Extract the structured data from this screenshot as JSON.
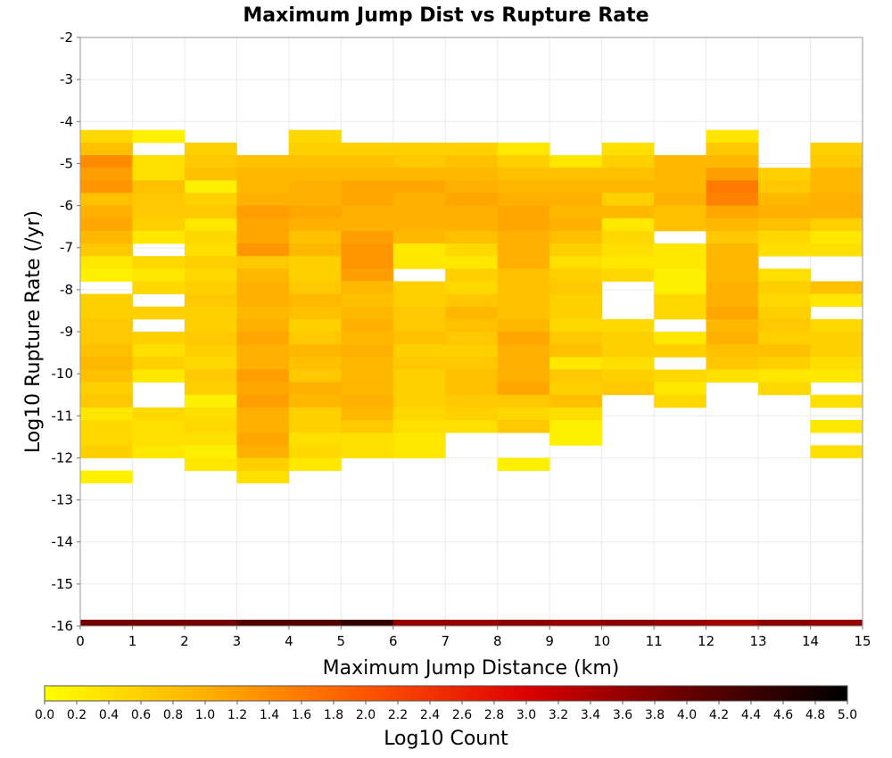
{
  "chart_data": {
    "type": "heatmap",
    "title": "Maximum Jump Dist vs Rupture Rate",
    "xlabel": "Maximum Jump Distance (km)",
    "ylabel": "Log10 Rupture Rate (/yr)",
    "colorbar_label": "Log10 Count",
    "xlim": [
      0,
      15
    ],
    "ylim": [
      -16,
      -2
    ],
    "x_ticks": [
      "0",
      "1",
      "2",
      "3",
      "4",
      "5",
      "6",
      "7",
      "8",
      "9",
      "10",
      "11",
      "12",
      "13",
      "14",
      "15"
    ],
    "y_ticks": [
      "-2",
      "-3",
      "-4",
      "-5",
      "-6",
      "-7",
      "-8",
      "-9",
      "-10",
      "-11",
      "-12",
      "-13",
      "-14",
      "-15",
      "-16"
    ],
    "colorbar_ticks": [
      "0.0",
      "0.2",
      "0.4",
      "0.6",
      "0.8",
      "1.0",
      "1.2",
      "1.4",
      "1.6",
      "1.8",
      "2.0",
      "2.2",
      "2.4",
      "2.6",
      "2.8",
      "3.0",
      "3.2",
      "3.4",
      "3.6",
      "3.8",
      "4.0",
      "4.2",
      "4.4",
      "4.6",
      "4.8",
      "5.0"
    ],
    "colorbar_range": [
      0,
      5
    ],
    "colormap": [
      "#ffff00",
      "#ffb000",
      "#ff5500",
      "#dd0000",
      "#660000",
      "#000000"
    ],
    "grid": true,
    "bin_width_x": 1,
    "bin_height_y": 0.3,
    "bins": [
      {
        "x": 0,
        "y0": -4.2,
        "values": [
          0.5,
          0.8,
          1.4,
          1.2,
          1.3,
          0.8,
          1.0,
          1.1,
          0.9,
          0.7,
          0.3,
          0.2,
          null,
          0.6,
          0.6,
          0.7,
          0.7,
          0.8,
          0.9,
          0.8,
          0.6,
          0.7,
          0.3,
          0.5,
          0.5,
          0.6,
          null,
          0.2
        ]
      },
      {
        "x": 1,
        "y0": -4.2,
        "values": [
          0.2,
          null,
          0.4,
          0.4,
          0.8,
          0.7,
          0.7,
          0.6,
          0.3,
          null,
          0.5,
          0.3,
          0.5,
          null,
          0.6,
          null,
          0.6,
          0.4,
          0.6,
          0.3,
          null,
          null,
          0.5,
          0.4,
          0.4,
          0.3
        ]
      },
      {
        "x": 2,
        "y0": -4.5,
        "values": [
          0.6,
          0.7,
          0.8,
          0.2,
          0.6,
          0.7,
          0.3,
          0.5,
          0.4,
          0.6,
          0.5,
          0.6,
          0.7,
          0.6,
          0.6,
          0.7,
          0.6,
          0.5,
          0.7,
          0.6,
          0.2,
          0.4,
          0.5,
          0.4,
          0.2,
          0.3
        ]
      },
      {
        "x": 3,
        "y0": -4.8,
        "values": [
          0.8,
          0.9,
          0.9,
          1.0,
          1.2,
          1.1,
          1.1,
          1.3,
          0.7,
          0.9,
          1.0,
          1.0,
          0.9,
          1.0,
          1.1,
          1.0,
          1.0,
          1.2,
          1.1,
          1.2,
          1.0,
          1.0,
          1.1,
          1.0,
          0.6,
          0.4
        ]
      },
      {
        "x": 4,
        "y0": -4.2,
        "values": [
          0.5,
          0.6,
          0.8,
          0.9,
          1.0,
          1.0,
          1.1,
          1.0,
          0.8,
          0.9,
          0.6,
          0.6,
          0.7,
          0.9,
          0.8,
          0.6,
          0.7,
          0.9,
          0.8,
          0.7,
          1.0,
          0.9,
          0.6,
          0.6,
          0.4,
          0.5,
          0.3
        ]
      },
      {
        "x": 5,
        "y0": -4.5,
        "values": [
          0.6,
          0.8,
          0.9,
          1.1,
          1.1,
          1.0,
          1.0,
          1.2,
          1.3,
          1.3,
          1.2,
          0.9,
          0.8,
          0.9,
          1.0,
          0.9,
          1.0,
          0.9,
          0.9,
          0.9,
          1.0,
          0.9,
          0.7,
          0.4,
          0.4
        ]
      },
      {
        "x": 6,
        "y0": -4.5,
        "values": [
          0.6,
          0.7,
          0.9,
          1.1,
          1.0,
          1.0,
          1.0,
          0.9,
          0.3,
          0.3,
          null,
          0.6,
          0.6,
          0.7,
          0.7,
          0.8,
          0.6,
          0.7,
          0.6,
          0.6,
          0.6,
          0.5,
          0.4,
          0.3,
          0.3
        ]
      },
      {
        "x": 7,
        "y0": -4.5,
        "values": [
          0.6,
          0.8,
          0.9,
          1.0,
          1.1,
          1.0,
          1.0,
          0.8,
          0.5,
          0.3,
          0.6,
          0.5,
          0.7,
          0.9,
          0.8,
          0.7,
          0.6,
          0.7,
          0.8,
          0.8,
          0.7,
          0.6,
          0.4
        ]
      },
      {
        "x": 8,
        "y0": -4.5,
        "values": [
          0.3,
          0.6,
          0.8,
          0.9,
          1.0,
          1.1,
          1.1,
          1.0,
          1.0,
          1.0,
          0.8,
          0.8,
          0.8,
          0.8,
          0.9,
          1.1,
          1.0,
          1.0,
          1.0,
          1.1,
          0.7,
          0.5,
          0.7,
          null,
          null,
          0.2
        ]
      },
      {
        "x": 9,
        "y0": -4.8,
        "values": [
          0.3,
          0.8,
          0.9,
          1.0,
          0.9,
          1.0,
          0.8,
          0.6,
          0.4,
          0.6,
          0.7,
          0.6,
          0.6,
          0.5,
          0.7,
          0.8,
          0.3,
          0.7,
          0.6,
          0.8,
          0.4,
          0.2,
          0.2
        ]
      },
      {
        "x": 10,
        "y0": -4.5,
        "values": [
          0.4,
          0.6,
          0.8,
          0.9,
          0.6,
          0.9,
          0.3,
          0.5,
          0.4,
          0.3,
          0.5,
          null,
          null,
          null,
          0.5,
          0.6,
          0.6,
          0.4,
          0.6,
          0.7
        ]
      },
      {
        "x": 11,
        "y0": -4.8,
        "values": [
          0.9,
          0.9,
          0.9,
          1.0,
          0.8,
          0.8,
          null,
          0.3,
          0.3,
          0.2,
          0.2,
          0.5,
          0.5,
          null,
          0.3,
          0.6,
          null,
          0.5,
          0.3,
          0.5
        ]
      },
      {
        "x": 12,
        "y0": -4.2,
        "values": [
          0.3,
          0.7,
          0.9,
          1.2,
          1.6,
          1.5,
          1.1,
          0.9,
          0.7,
          0.9,
          0.9,
          0.9,
          1.0,
          1.0,
          1.1,
          0.9,
          1.0,
          0.8,
          0.7,
          0.4
        ]
      },
      {
        "x": 13,
        "y0": -5.1,
        "values": [
          0.6,
          0.7,
          0.9,
          1.0,
          0.8,
          0.5,
          0.4,
          null,
          0.4,
          0.6,
          0.5,
          0.6,
          0.7,
          0.6,
          0.8,
          0.6,
          0.3,
          0.5
        ]
      },
      {
        "x": 14,
        "y0": -4.5,
        "values": [
          0.6,
          0.7,
          0.9,
          0.9,
          1.0,
          1.0,
          0.6,
          0.3,
          0.4,
          null,
          null,
          0.8,
          0.3,
          null,
          0.5,
          0.6,
          0.6,
          0.4,
          0.3,
          null,
          0.4,
          null,
          0.3,
          null,
          0.4
        ]
      }
    ],
    "colorbar_row": {
      "y0": -16,
      "y1": -15.85,
      "values": [
        3.9,
        3.9,
        3.9,
        4.2,
        4.2,
        4.5,
        3.6,
        3.6,
        3.7,
        3.6,
        3.7,
        3.6,
        3.5,
        3.7,
        3.6
      ]
    }
  }
}
